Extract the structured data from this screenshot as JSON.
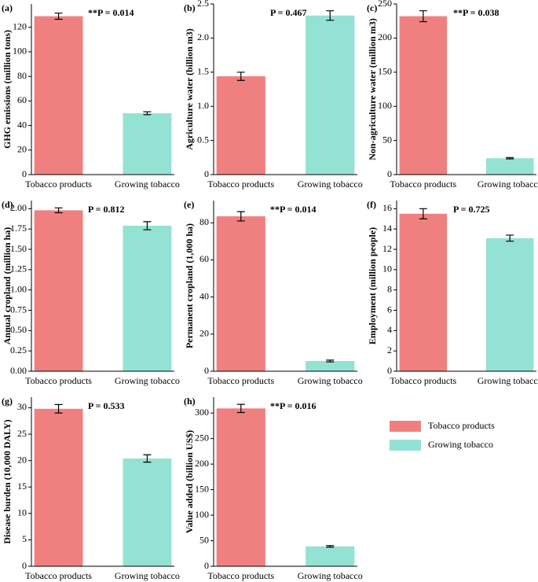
{
  "chart_data": [
    {
      "type": "bar",
      "label": "(a)",
      "ylabel": "GHG emissions (million tons)",
      "annotation": "**P = 0.014",
      "categories": [
        "Tobacco products",
        "Growing tobacco"
      ],
      "values": [
        129,
        50
      ],
      "errors": [
        2.5,
        1.2
      ],
      "colors": [
        "#f08080",
        "#94e2d4"
      ],
      "ylim": [
        0,
        139
      ],
      "yticks": [
        0,
        20,
        40,
        60,
        80,
        100,
        120
      ]
    },
    {
      "type": "bar",
      "label": "(b)",
      "ylabel": "Agriculture water (billion m3)",
      "annotation": "P = 0.467",
      "categories": [
        "Tobacco products",
        "Growing tobacco"
      ],
      "values": [
        1.44,
        2.33
      ],
      "errors": [
        0.06,
        0.07
      ],
      "colors": [
        "#f08080",
        "#94e2d4"
      ],
      "ylim": [
        0,
        2.5
      ],
      "yticks": [
        0,
        {
          "value": 0.5,
          "label": "0.5"
        },
        {
          "value": 1,
          "label": "1.0"
        },
        {
          "value": 1.5,
          "label": "1.5"
        },
        {
          "value": 2,
          "label": "2.0"
        },
        {
          "value": 2.5,
          "label": "2.5"
        }
      ]
    },
    {
      "type": "bar",
      "label": "(c)",
      "ylabel": "Non-agriculture water (million m3)",
      "annotation": "**P = 0.038",
      "categories": [
        "Tobacco products",
        "Growing tobacco"
      ],
      "values": [
        232,
        24
      ],
      "errors": [
        8,
        1
      ],
      "colors": [
        "#f08080",
        "#94e2d4"
      ],
      "ylim": [
        0,
        250
      ],
      "yticks": [
        0,
        50,
        100,
        150,
        200,
        250
      ]
    },
    {
      "type": "bar",
      "label": "(d)",
      "ylabel": "Annual cropland (million ha)",
      "annotation": "P = 0.812",
      "categories": [
        "Tobacco products",
        "Growing tobacco"
      ],
      "values": [
        1.98,
        1.79
      ],
      "errors": [
        0.03,
        0.05
      ],
      "colors": [
        "#f08080",
        "#94e2d4"
      ],
      "ylim": [
        0,
        2.1
      ],
      "yticks": [
        {
          "value": 0,
          "label": "0.00"
        },
        0.25,
        {
          "value": 0.5,
          "label": "0.50"
        },
        0.75,
        {
          "value": 1,
          "label": "1.00"
        },
        1.25,
        {
          "value": 1.5,
          "label": "1.50"
        },
        1.75,
        {
          "value": 2,
          "label": "2.00"
        }
      ]
    },
    {
      "type": "bar",
      "label": "(e)",
      "ylabel": "Permanent cropland (1,000 ha)",
      "annotation": "**P = 0.014",
      "categories": [
        "Tobacco products",
        "Growing tobacco"
      ],
      "values": [
        83.5,
        5.5
      ],
      "errors": [
        2.5,
        0.5
      ],
      "colors": [
        "#f08080",
        "#94e2d4"
      ],
      "ylim": [
        0,
        92
      ],
      "yticks": [
        0,
        20,
        40,
        60,
        80
      ]
    },
    {
      "type": "bar",
      "label": "(f)",
      "ylabel": "Employment (million people)",
      "annotation": "P = 0.725",
      "categories": [
        "Tobacco products",
        "Growing tobacco"
      ],
      "values": [
        15.5,
        13.1
      ],
      "errors": [
        0.5,
        0.3
      ],
      "colors": [
        "#f08080",
        "#94e2d4"
      ],
      "ylim": [
        0,
        16.8
      ],
      "yticks": [
        0,
        2,
        4,
        6,
        8,
        10,
        12,
        14,
        16
      ]
    },
    {
      "type": "bar",
      "label": "(g)",
      "ylabel": "Disease burden (10,000 DALY)",
      "annotation": "P = 0.533",
      "categories": [
        "Tobacco products",
        "Growing tobacco"
      ],
      "values": [
        29.8,
        20.4
      ],
      "errors": [
        0.8,
        0.7
      ],
      "colors": [
        "#f08080",
        "#94e2d4"
      ],
      "ylim": [
        0,
        32
      ],
      "yticks": [
        0,
        5,
        10,
        15,
        20,
        25,
        30
      ]
    },
    {
      "type": "bar",
      "label": "(h)",
      "ylabel": "Value added (billion US$)",
      "annotation": "**P = 0.016",
      "categories": [
        "Tobacco products",
        "Growing tobacco"
      ],
      "values": [
        309,
        39
      ],
      "errors": [
        8,
        1.5
      ],
      "colors": [
        "#f08080",
        "#94e2d4"
      ],
      "ylim": [
        0,
        331
      ],
      "yticks": [
        0,
        50,
        100,
        150,
        200,
        250,
        300
      ]
    }
  ],
  "legend": {
    "entries": [
      {
        "name": "Tobacco products",
        "color": "#f08080"
      },
      {
        "name": "Growing tobacco",
        "color": "#94e2d4"
      }
    ]
  }
}
